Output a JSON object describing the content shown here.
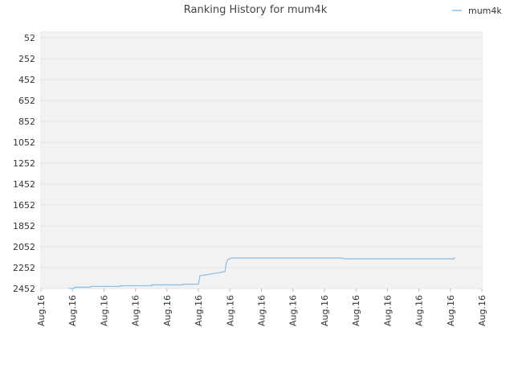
{
  "chart_data": {
    "type": "line",
    "title": "Ranking History for mum4k",
    "xlim": [
      0,
      14
    ],
    "xticks": [
      {
        "value": 0,
        "label": "Aug.16"
      },
      {
        "value": 1,
        "label": "Aug.16"
      },
      {
        "value": 2,
        "label": "Aug.16"
      },
      {
        "value": 3,
        "label": "Aug.16"
      },
      {
        "value": 4,
        "label": "Aug.16"
      },
      {
        "value": 5,
        "label": "Aug.16"
      },
      {
        "value": 6,
        "label": "Aug.16"
      },
      {
        "value": 7,
        "label": "Aug.16"
      },
      {
        "value": 8,
        "label": "Aug.16"
      },
      {
        "value": 9,
        "label": "Aug.16"
      },
      {
        "value": 10,
        "label": "Aug.16"
      },
      {
        "value": 11,
        "label": "Aug.16"
      },
      {
        "value": 12,
        "label": "Aug.16"
      },
      {
        "value": 13,
        "label": "Aug.16"
      },
      {
        "value": 14,
        "label": "Aug.16"
      }
    ],
    "ylim": [
      -2,
      2452
    ],
    "y_reversed": true,
    "yticks": [
      52,
      252,
      452,
      652,
      852,
      1052,
      1252,
      1452,
      1652,
      1852,
      2052,
      2252,
      2452
    ],
    "grid": true,
    "legend": "top-right",
    "series": [
      {
        "name": "mum4k",
        "color": "#8ec2ec",
        "x": [
          0.89,
          1.07,
          1.07,
          1.58,
          1.58,
          2.52,
          2.52,
          3.52,
          3.52,
          4.51,
          4.51,
          5.0,
          5.05,
          5.46,
          5.84,
          5.89,
          5.94,
          6.04,
          9.59,
          9.61,
          13.11,
          13.13
        ],
        "values": [
          2450,
          2450,
          2440,
          2440,
          2432,
          2432,
          2425,
          2425,
          2417,
          2417,
          2410,
          2410,
          2330,
          2310,
          2290,
          2200,
          2175,
          2160,
          2160,
          2168,
          2168,
          2150
        ]
      }
    ]
  }
}
